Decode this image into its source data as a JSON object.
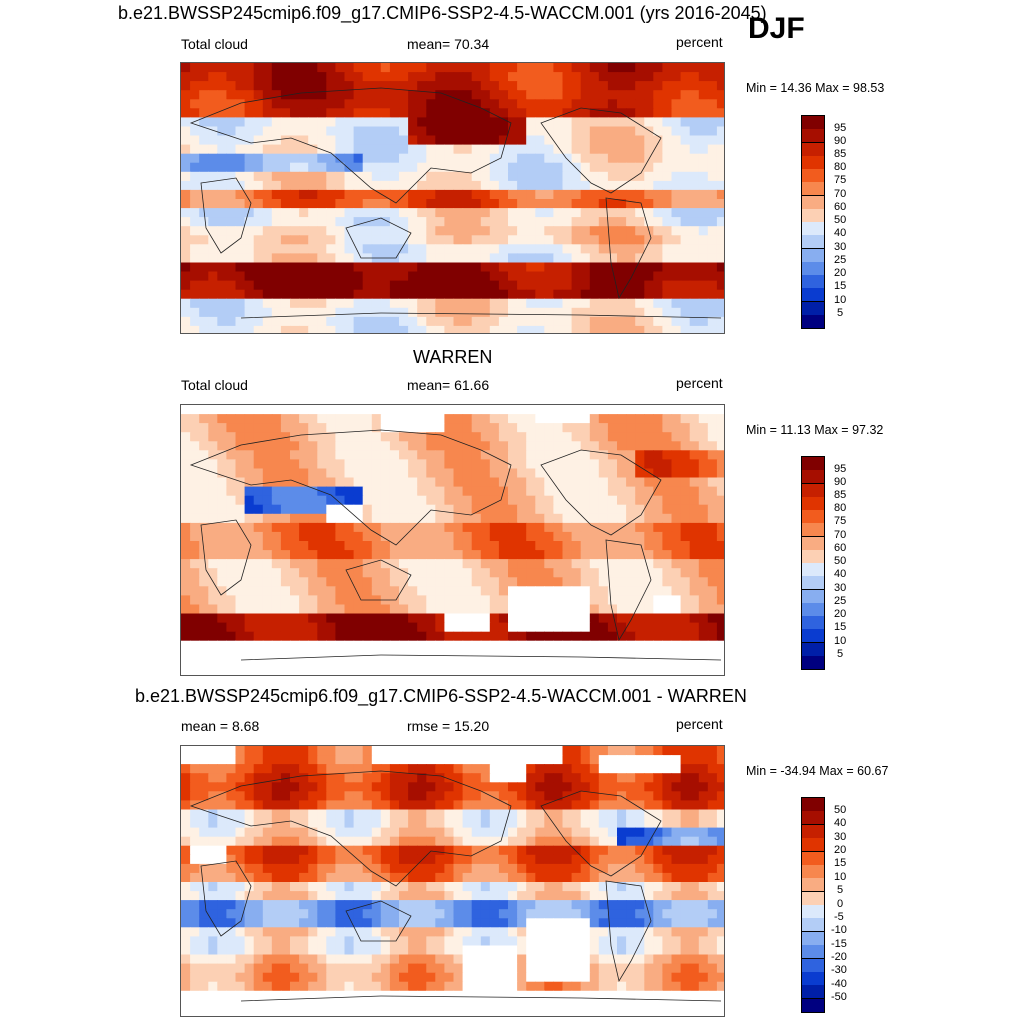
{
  "season": "DJF",
  "panels": [
    {
      "title": "b.e21.BWSSP245cmip6.f09_g17.CMIP6-SSP2-4.5-WACCM.001 (yrs 2016-2045)",
      "left_label": "Total cloud",
      "center_label": "mean=  70.34",
      "units": "percent",
      "minmax": "Min =  14.36 Max =  98.53",
      "map_kind": "model",
      "colorbar": [
        "95",
        "90",
        "85",
        "80",
        "75",
        "70",
        "60",
        "50",
        "40",
        "30",
        "25",
        "20",
        "15",
        "10",
        "5"
      ]
    },
    {
      "title": "WARREN",
      "left_label": "Total cloud",
      "center_label": "mean=  61.66",
      "units": "percent",
      "minmax": "Min =  11.13 Max =  97.32",
      "map_kind": "obs",
      "colorbar": [
        "95",
        "90",
        "85",
        "80",
        "75",
        "70",
        "60",
        "50",
        "40",
        "30",
        "25",
        "20",
        "15",
        "10",
        "5"
      ]
    },
    {
      "title": "b.e21.BWSSP245cmip6.f09_g17.CMIP6-SSP2-4.5-WACCM.001 - WARREN",
      "left_label": "mean =   8.68",
      "center_label": "rmse =  15.20",
      "units": "percent",
      "minmax": "Min = -34.94 Max =  60.67",
      "map_kind": "diff",
      "colorbar": [
        "50",
        "40",
        "30",
        "20",
        "15",
        "10",
        "5",
        "0",
        "-5",
        "-10",
        "-15",
        "-20",
        "-30",
        "-40",
        "-50"
      ]
    }
  ],
  "colors": {
    "scale": [
      "#800000",
      "#a60e00",
      "#c62000",
      "#e03400",
      "#f25c1e",
      "#f7874e",
      "#f9ac82",
      "#fcd0b4",
      "#fef1e4",
      "#dce9fb",
      "#b3cdf6",
      "#88aef0",
      "#5c8ce9",
      "#2f63df",
      "#0a3cd0",
      "#001fa8",
      "#000080"
    ]
  }
}
